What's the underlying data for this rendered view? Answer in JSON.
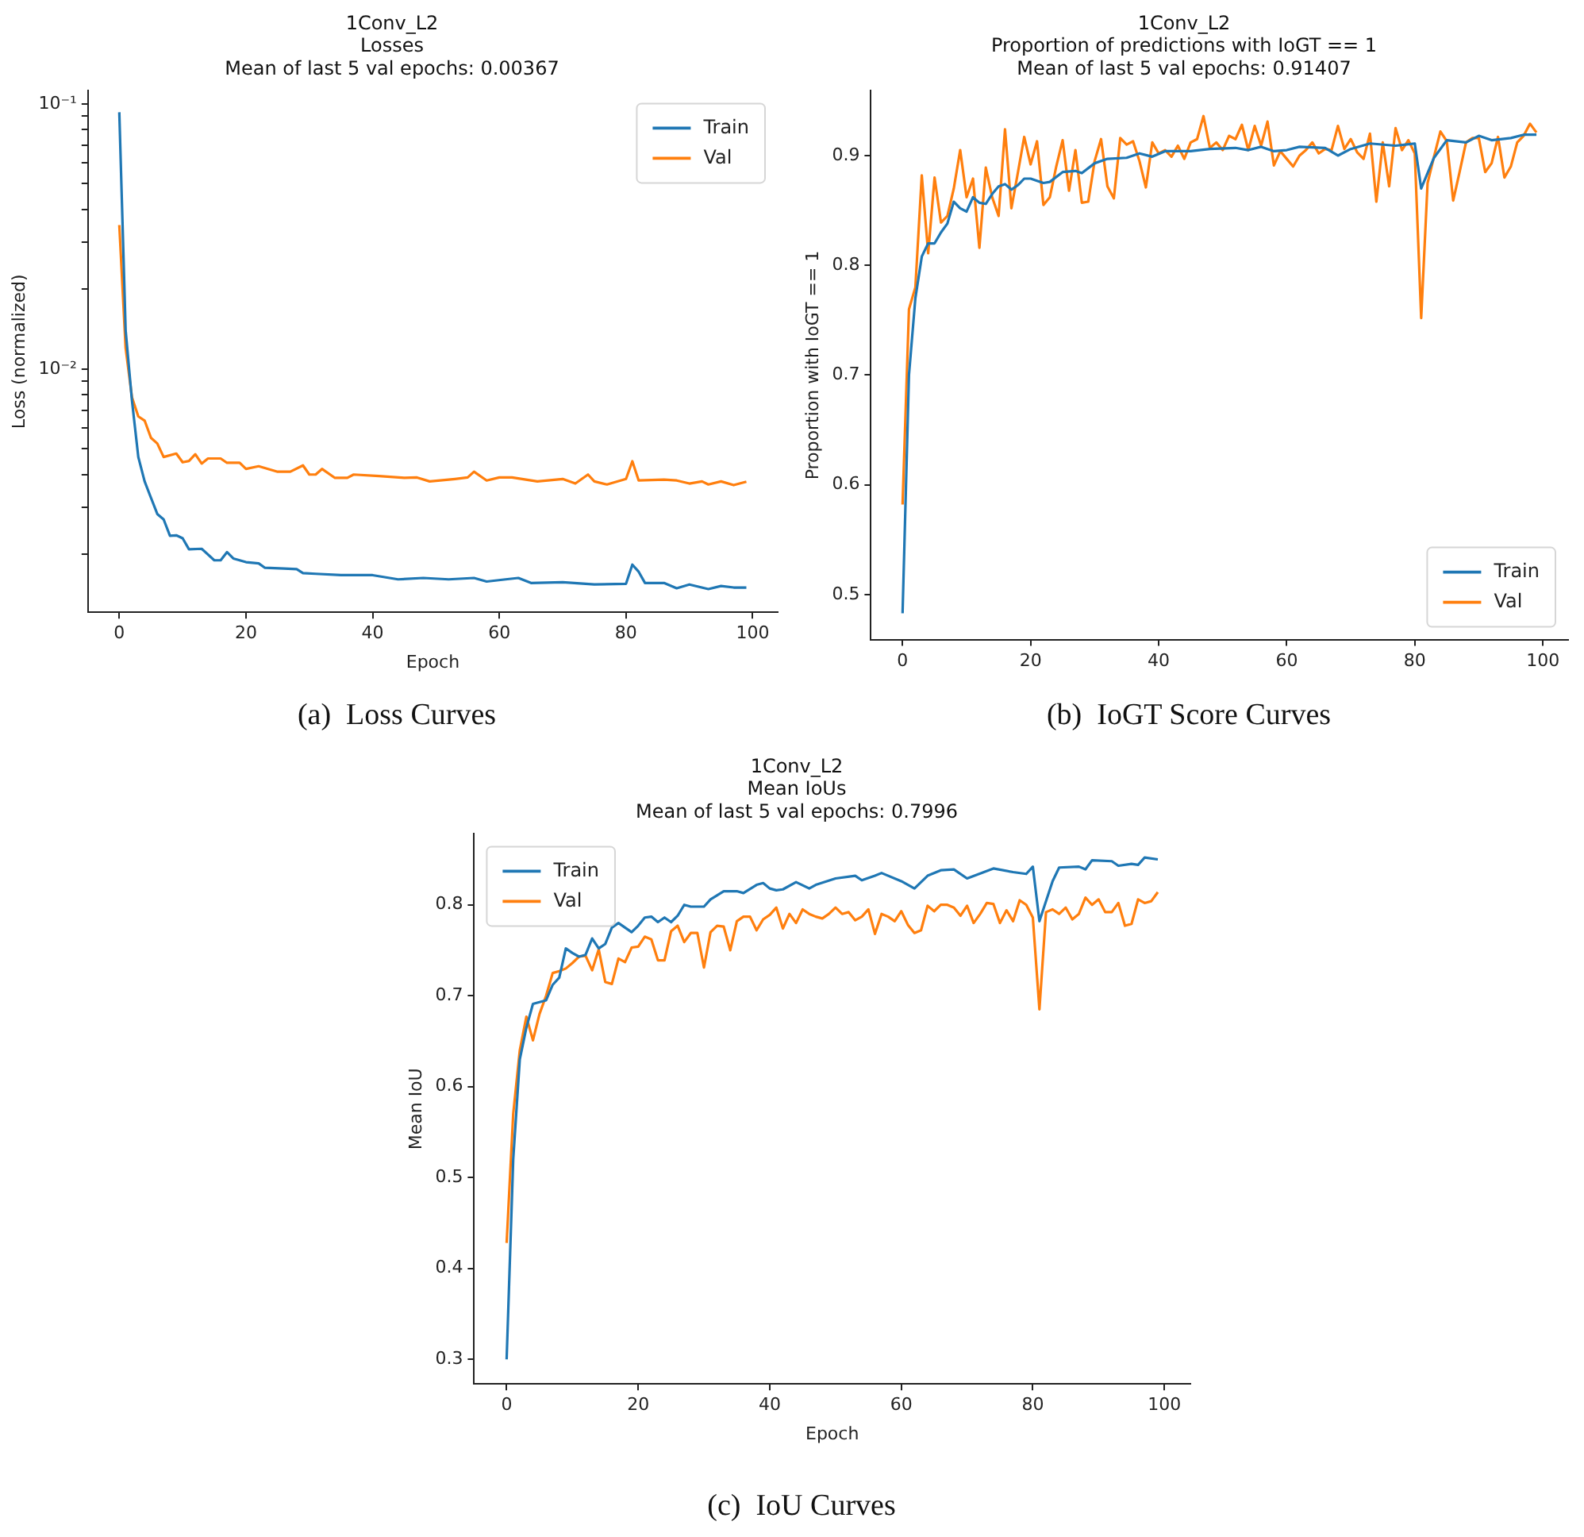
{
  "chart_data": [
    {
      "type": "line",
      "title": "1Conv_L2\nLosses\nMean of last 5 val epochs: 0.00367",
      "xlabel": "Epoch",
      "ylabel": "Loss (normalized)",
      "log": true,
      "grid": false,
      "legend": "top right",
      "marker": "none",
      "line_style": "solid",
      "xlim": [
        -4.95,
        103.95
      ],
      "xticks": [
        0,
        20,
        40,
        60,
        80,
        100
      ],
      "ylim": [
        0.00121,
        0.112
      ],
      "yticks": [
        {
          "value": 0.002,
          "label": null
        },
        {
          "value": 0.003,
          "label": null
        },
        {
          "value": 0.004,
          "label": null
        },
        {
          "value": 0.005,
          "label": null
        },
        {
          "value": 0.006,
          "label": null
        },
        {
          "value": 0.007,
          "label": null
        },
        {
          "value": 0.008,
          "label": null
        },
        {
          "value": 0.009,
          "label": null
        },
        {
          "value": 0.01,
          "label": "10⁻²"
        },
        {
          "value": 0.02,
          "label": null
        },
        {
          "value": 0.03,
          "label": null
        },
        {
          "value": 0.04,
          "label": null
        },
        {
          "value": 0.05,
          "label": null
        },
        {
          "value": 0.06,
          "label": null
        },
        {
          "value": 0.07,
          "label": null
        },
        {
          "value": 0.08,
          "label": null
        },
        {
          "value": 0.09,
          "label": null
        },
        {
          "value": 0.1,
          "label": "10⁻¹"
        }
      ],
      "annotations": [
        "(a)  Loss Curves"
      ],
      "series": [
        {
          "name": "Train",
          "color": "#1f77b4",
          "x": [
            0,
            1,
            2,
            3,
            4,
            5,
            6,
            7,
            8,
            9,
            10,
            11,
            13,
            15,
            16,
            17,
            18,
            20,
            22,
            23,
            26,
            28,
            29,
            31,
            35,
            40,
            44,
            48,
            52,
            56,
            58,
            61,
            63,
            65,
            70,
            75,
            80,
            81,
            82,
            83,
            86,
            88,
            90,
            93,
            95,
            97,
            99
          ],
          "values": [
            0.093,
            0.014,
            0.0076,
            0.00466,
            0.00377,
            0.00327,
            0.00284,
            0.00271,
            0.00235,
            0.00236,
            0.0023,
            0.00209,
            0.0021,
            0.0019,
            0.0019,
            0.00204,
            0.00193,
            0.00187,
            0.00185,
            0.00178,
            0.00177,
            0.00176,
            0.0017,
            0.00169,
            0.00167,
            0.00167,
            0.00161,
            0.00163,
            0.00161,
            0.00163,
            0.00158,
            0.00161,
            0.00163,
            0.00156,
            0.00157,
            0.00154,
            0.00155,
            0.00183,
            0.00172,
            0.00156,
            0.00156,
            0.00149,
            0.00154,
            0.00148,
            0.00152,
            0.0015,
            0.0015
          ]
        },
        {
          "name": "Val",
          "color": "#ff7f0e",
          "x": [
            0,
            1,
            2,
            3,
            4,
            5,
            6,
            7,
            9,
            10,
            11,
            12,
            13,
            14,
            16,
            17,
            19,
            20,
            22,
            25,
            27,
            29,
            30,
            31,
            32,
            34,
            36,
            37,
            41,
            45,
            47,
            49,
            53,
            55,
            56,
            58,
            60,
            62,
            66,
            70,
            72,
            74,
            75,
            77,
            80,
            81,
            82,
            86,
            88,
            90,
            92,
            93,
            95,
            97,
            99
          ],
          "values": [
            0.0349,
            0.012,
            0.00782,
            0.00663,
            0.00639,
            0.0055,
            0.00524,
            0.00466,
            0.0048,
            0.00445,
            0.0045,
            0.00477,
            0.0044,
            0.0046,
            0.0046,
            0.00443,
            0.00443,
            0.0042,
            0.0043,
            0.0041,
            0.0041,
            0.00433,
            0.004,
            0.004,
            0.0042,
            0.00389,
            0.00389,
            0.004,
            0.00395,
            0.00389,
            0.0039,
            0.00377,
            0.00385,
            0.0039,
            0.0041,
            0.0038,
            0.0039,
            0.0039,
            0.00377,
            0.00385,
            0.0037,
            0.004,
            0.00377,
            0.00367,
            0.00385,
            0.00449,
            0.0038,
            0.00383,
            0.0038,
            0.0037,
            0.00377,
            0.00367,
            0.00377,
            0.00365,
            0.00376
          ]
        }
      ]
    },
    {
      "type": "line",
      "title": "1Conv_L2\nProportion of predictions with IoGT == 1\nMean of last 5 val epochs: 0.91407",
      "ylabel": "Proportion with IoGT == 1",
      "grid": false,
      "legend": "bottom right",
      "marker": "none",
      "line_style": "solid",
      "xlim": [
        -4.95,
        103.95
      ],
      "xticks": [
        0,
        20,
        40,
        60,
        80,
        100
      ],
      "ylim": [
        0.459,
        0.959
      ],
      "yticks": [
        0.5,
        0.6,
        0.7,
        0.8,
        0.9
      ],
      "annotations": [
        "(b)  IoGT Score Curves"
      ],
      "series": [
        {
          "name": "Train",
          "color": "#1f77b4",
          "x": [
            0,
            1,
            2,
            3,
            4,
            5,
            6,
            7,
            8,
            9,
            10,
            11,
            12,
            13,
            14,
            15,
            16,
            17,
            18,
            19,
            20,
            22,
            23,
            25,
            27,
            28,
            30,
            32,
            35,
            37,
            39,
            41,
            45,
            48,
            52,
            54,
            56,
            58,
            60,
            62,
            66,
            68,
            70,
            73,
            77,
            80,
            81,
            83,
            85,
            88,
            90,
            92,
            95,
            97,
            99
          ],
          "values": [
            0.483,
            0.7,
            0.77,
            0.808,
            0.82,
            0.82,
            0.83,
            0.838,
            0.858,
            0.852,
            0.849,
            0.862,
            0.857,
            0.856,
            0.865,
            0.872,
            0.874,
            0.869,
            0.873,
            0.879,
            0.879,
            0.875,
            0.876,
            0.885,
            0.886,
            0.884,
            0.893,
            0.897,
            0.898,
            0.902,
            0.899,
            0.904,
            0.904,
            0.906,
            0.907,
            0.905,
            0.908,
            0.904,
            0.905,
            0.908,
            0.907,
            0.9,
            0.906,
            0.911,
            0.909,
            0.911,
            0.87,
            0.898,
            0.914,
            0.912,
            0.918,
            0.914,
            0.916,
            0.919,
            0.919
          ]
        },
        {
          "name": "Val",
          "color": "#ff7f0e",
          "x": [
            0,
            1,
            2,
            3,
            4,
            5,
            6,
            7,
            8,
            9,
            10,
            11,
            12,
            13,
            14,
            15,
            16,
            17,
            18,
            19,
            20,
            21,
            22,
            23,
            24,
            25,
            26,
            27,
            28,
            29,
            30,
            31,
            32,
            33,
            34,
            35,
            36,
            37,
            38,
            39,
            40,
            41,
            42,
            43,
            44,
            45,
            46,
            47,
            48,
            49,
            50,
            51,
            52,
            53,
            54,
            55,
            56,
            57,
            58,
            59,
            60,
            61,
            62,
            63,
            64,
            65,
            66,
            67,
            68,
            69,
            70,
            71,
            72,
            73,
            74,
            75,
            76,
            77,
            78,
            79,
            80,
            81,
            82,
            83,
            84,
            85,
            86,
            87,
            88,
            89,
            90,
            91,
            92,
            93,
            94,
            95,
            96,
            97,
            98,
            99
          ],
          "values": [
            0.582,
            0.76,
            0.78,
            0.882,
            0.811,
            0.88,
            0.839,
            0.845,
            0.87,
            0.905,
            0.862,
            0.879,
            0.816,
            0.889,
            0.862,
            0.845,
            0.924,
            0.852,
            0.884,
            0.917,
            0.892,
            0.913,
            0.855,
            0.862,
            0.89,
            0.914,
            0.868,
            0.905,
            0.857,
            0.858,
            0.895,
            0.915,
            0.872,
            0.861,
            0.916,
            0.91,
            0.913,
            0.895,
            0.871,
            0.912,
            0.902,
            0.905,
            0.899,
            0.909,
            0.897,
            0.912,
            0.915,
            0.936,
            0.907,
            0.912,
            0.905,
            0.918,
            0.915,
            0.928,
            0.905,
            0.927,
            0.909,
            0.931,
            0.891,
            0.904,
            0.897,
            0.89,
            0.9,
            0.905,
            0.912,
            0.902,
            0.906,
            0.905,
            0.927,
            0.906,
            0.915,
            0.903,
            0.897,
            0.92,
            0.858,
            0.912,
            0.872,
            0.925,
            0.905,
            0.914,
            0.902,
            0.752,
            0.875,
            0.899,
            0.922,
            0.913,
            0.859,
            0.885,
            0.912,
            0.916,
            0.916,
            0.885,
            0.893,
            0.917,
            0.88,
            0.89,
            0.912,
            0.918,
            0.929,
            0.921
          ]
        }
      ]
    },
    {
      "type": "line",
      "title": "1Conv_L2\nMean IoUs\nMean of last 5 val epochs: 0.7996",
      "xlabel": "Epoch",
      "ylabel": "Mean IoU",
      "grid": false,
      "legend": "top left",
      "marker": "none",
      "line_style": "solid",
      "xlim": [
        -4.95,
        103.95
      ],
      "xticks": [
        0,
        20,
        40,
        60,
        80,
        100
      ],
      "ylim": [
        0.273,
        0.878
      ],
      "yticks": [
        0.3,
        0.4,
        0.5,
        0.6,
        0.7,
        0.8
      ],
      "annotations": [
        "(c)  IoU Curves"
      ],
      "series": [
        {
          "name": "Train",
          "color": "#1f77b4",
          "x": [
            0,
            1,
            2,
            3,
            4,
            5,
            6,
            7,
            8,
            9,
            10,
            11,
            12,
            13,
            14,
            15,
            16,
            17,
            18,
            19,
            20,
            21,
            22,
            23,
            24,
            25,
            26,
            27,
            28,
            30,
            31,
            33,
            35,
            36,
            38,
            39,
            40,
            41,
            42,
            44,
            46,
            47,
            50,
            53,
            54,
            56,
            57,
            60,
            62,
            64,
            66,
            68,
            70,
            74,
            77,
            79,
            80,
            81,
            83,
            84,
            87,
            88,
            89,
            92,
            93,
            95,
            96,
            97,
            99
          ],
          "values": [
            0.3,
            0.52,
            0.63,
            0.665,
            0.691,
            0.693,
            0.695,
            0.712,
            0.72,
            0.752,
            0.747,
            0.743,
            0.745,
            0.763,
            0.752,
            0.757,
            0.775,
            0.78,
            0.775,
            0.77,
            0.777,
            0.786,
            0.787,
            0.781,
            0.786,
            0.781,
            0.788,
            0.8,
            0.798,
            0.798,
            0.806,
            0.815,
            0.815,
            0.813,
            0.822,
            0.824,
            0.818,
            0.816,
            0.817,
            0.825,
            0.818,
            0.822,
            0.829,
            0.832,
            0.827,
            0.832,
            0.835,
            0.826,
            0.818,
            0.832,
            0.838,
            0.839,
            0.829,
            0.84,
            0.836,
            0.834,
            0.842,
            0.782,
            0.826,
            0.841,
            0.842,
            0.839,
            0.849,
            0.848,
            0.843,
            0.845,
            0.844,
            0.852,
            0.85
          ]
        },
        {
          "name": "Val",
          "color": "#ff7f0e",
          "x": [
            0,
            1,
            2,
            3,
            4,
            5,
            6,
            7,
            8,
            9,
            10,
            11,
            12,
            13,
            14,
            15,
            16,
            17,
            18,
            19,
            20,
            21,
            22,
            23,
            24,
            25,
            26,
            27,
            28,
            29,
            30,
            31,
            32,
            33,
            34,
            35,
            36,
            37,
            38,
            39,
            40,
            41,
            42,
            43,
            44,
            45,
            46,
            47,
            48,
            49,
            50,
            51,
            52,
            53,
            54,
            55,
            56,
            57,
            58,
            59,
            60,
            61,
            62,
            63,
            64,
            65,
            66,
            67,
            68,
            69,
            70,
            71,
            72,
            73,
            74,
            75,
            76,
            77,
            78,
            79,
            80,
            81,
            82,
            83,
            84,
            85,
            86,
            87,
            88,
            89,
            90,
            91,
            92,
            93,
            94,
            95,
            96,
            97,
            98,
            99
          ],
          "values": [
            0.428,
            0.57,
            0.64,
            0.677,
            0.651,
            0.68,
            0.7,
            0.725,
            0.727,
            0.73,
            0.736,
            0.743,
            0.744,
            0.728,
            0.751,
            0.715,
            0.713,
            0.741,
            0.737,
            0.753,
            0.754,
            0.765,
            0.762,
            0.739,
            0.739,
            0.771,
            0.777,
            0.759,
            0.769,
            0.769,
            0.731,
            0.77,
            0.777,
            0.776,
            0.75,
            0.782,
            0.787,
            0.787,
            0.772,
            0.784,
            0.789,
            0.797,
            0.774,
            0.79,
            0.78,
            0.795,
            0.79,
            0.787,
            0.785,
            0.79,
            0.797,
            0.79,
            0.792,
            0.783,
            0.787,
            0.795,
            0.768,
            0.79,
            0.787,
            0.782,
            0.793,
            0.778,
            0.769,
            0.772,
            0.799,
            0.793,
            0.8,
            0.8,
            0.797,
            0.788,
            0.799,
            0.78,
            0.79,
            0.802,
            0.801,
            0.78,
            0.794,
            0.782,
            0.805,
            0.8,
            0.786,
            0.685,
            0.792,
            0.795,
            0.79,
            0.797,
            0.784,
            0.79,
            0.808,
            0.8,
            0.806,
            0.792,
            0.792,
            0.802,
            0.777,
            0.779,
            0.806,
            0.802,
            0.804,
            0.814
          ]
        }
      ]
    }
  ]
}
